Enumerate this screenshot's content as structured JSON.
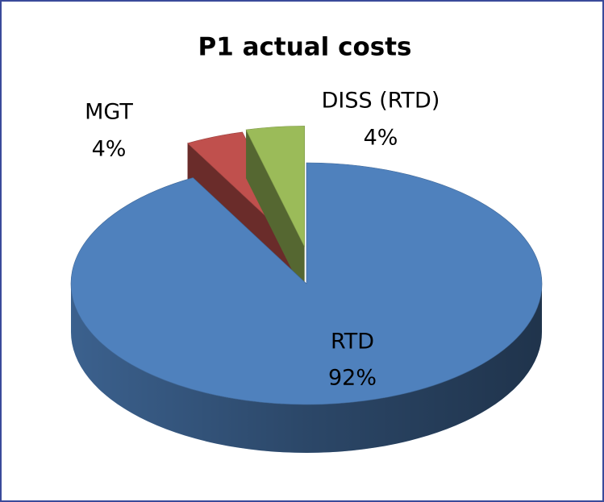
{
  "chart_data": {
    "type": "pie",
    "title": "P1 actual costs",
    "categories": [
      "RTD",
      "MGT",
      "DISS (RTD)"
    ],
    "values": [
      92,
      4,
      4
    ],
    "value_labels": [
      "92%",
      "4%",
      "4%"
    ],
    "colors": [
      "#4f81bd",
      "#c0504d",
      "#9bbb59"
    ]
  }
}
